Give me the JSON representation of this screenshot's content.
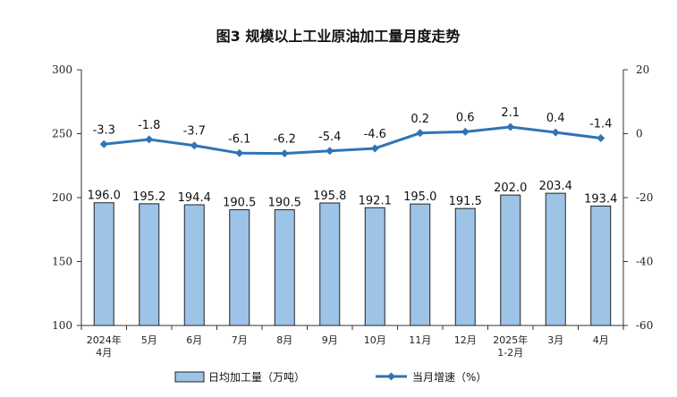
{
  "chart_data": {
    "type": "bar+line",
    "title": "图3  规模以上工业原油加工量月度走势",
    "categories": [
      [
        "2024年",
        "4月"
      ],
      [
        "5月"
      ],
      [
        "6月"
      ],
      [
        "7月"
      ],
      [
        "8月"
      ],
      [
        "9月"
      ],
      [
        "10月"
      ],
      [
        "11月"
      ],
      [
        "12月"
      ],
      [
        "2025年",
        "1-2月"
      ],
      [
        "3月"
      ],
      [
        "4月"
      ]
    ],
    "series": [
      {
        "name": "日均加工量（万吨）",
        "type": "bar",
        "axis": "left",
        "color": "#9DC3E6",
        "values": [
          196.0,
          195.2,
          194.4,
          190.5,
          190.5,
          195.8,
          192.1,
          195.0,
          191.5,
          202.0,
          203.4,
          193.4
        ],
        "labels": [
          "196.0",
          "195.2",
          "194.4",
          "190.5",
          "190.5",
          "195.8",
          "192.1",
          "195.0",
          "191.5",
          "202.0",
          "203.4",
          "193.4"
        ]
      },
      {
        "name": "当月增速（%）",
        "type": "line",
        "axis": "right",
        "color": "#2E75B6",
        "values": [
          -3.3,
          -1.8,
          -3.7,
          -6.1,
          -6.2,
          -5.4,
          -4.6,
          0.2,
          0.6,
          2.1,
          0.4,
          -1.4
        ],
        "labels": [
          "-3.3",
          "-1.8",
          "-3.7",
          "-6.1",
          "-6.2",
          "-5.4",
          "-4.6",
          "0.2",
          "0.6",
          "2.1",
          "0.4",
          "-1.4"
        ]
      }
    ],
    "y_left": {
      "min": 100,
      "max": 300,
      "ticks": [
        100,
        150,
        200,
        250,
        300
      ]
    },
    "y_right": {
      "min": -60,
      "max": 20,
      "ticks": [
        -60,
        -40,
        -20,
        0,
        20
      ]
    },
    "legend_placement": "bottom",
    "grid": false
  }
}
